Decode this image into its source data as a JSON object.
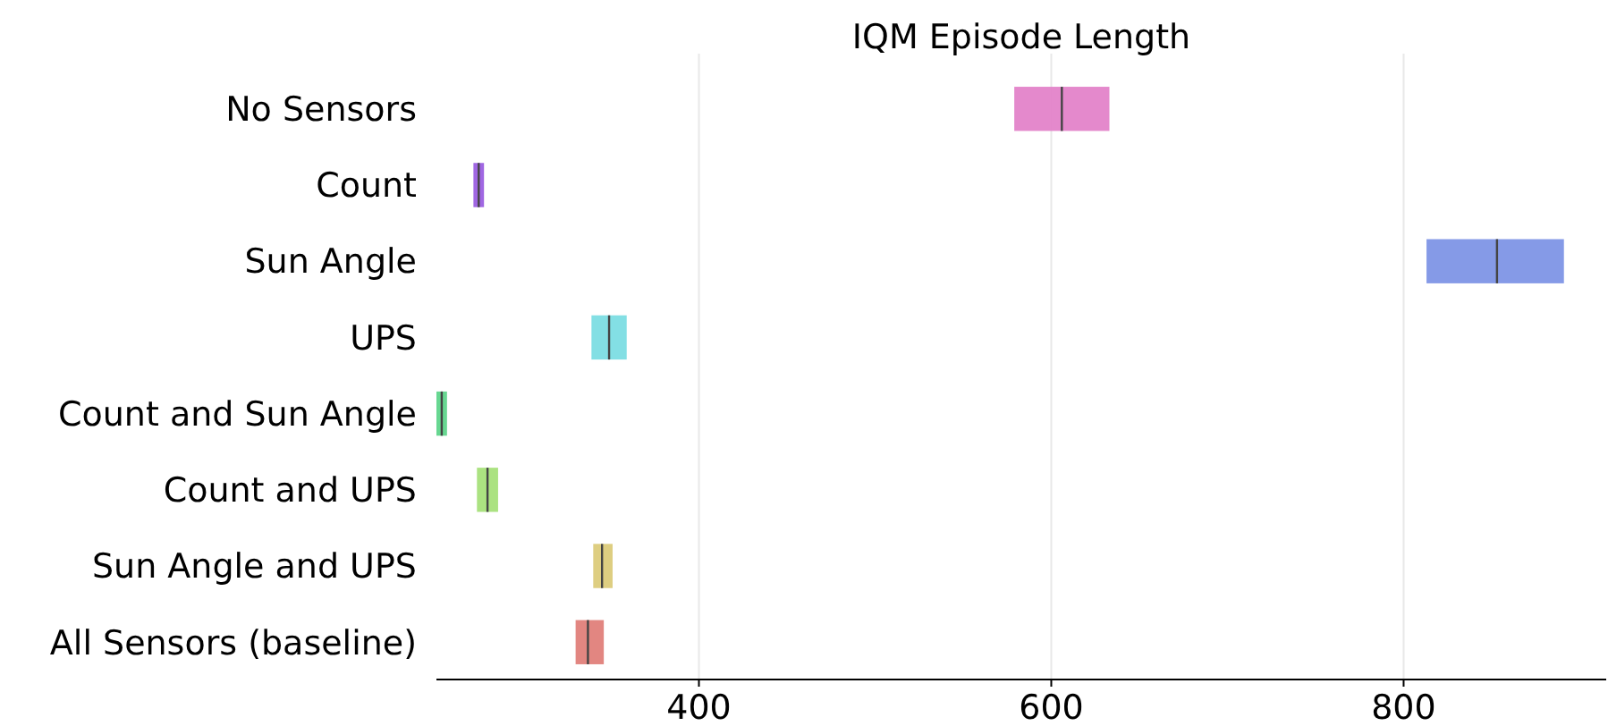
{
  "chart_data": {
    "type": "box",
    "title": "IQM Episode Length",
    "orientation": "horizontal",
    "categories": [
      "No Sensors",
      "Count",
      "Sun Angle",
      "UPS",
      "Count and Sun Angle",
      "Count and UPS",
      "Sun Angle and UPS",
      "All Sensors (baseline)"
    ],
    "boxes": [
      {
        "low": 579,
        "q1": 579,
        "median": 606,
        "q3": 633,
        "high": 633
      },
      {
        "low": 272,
        "q1": 272,
        "median": 275,
        "q3": 278,
        "high": 278
      },
      {
        "low": 813,
        "q1": 813,
        "median": 853,
        "q3": 891,
        "high": 891
      },
      {
        "low": 339,
        "q1": 339,
        "median": 349,
        "q3": 359,
        "high": 359
      },
      {
        "low": 251,
        "q1": 251,
        "median": 254,
        "q3": 257,
        "high": 257
      },
      {
        "low": 274,
        "q1": 274,
        "median": 280,
        "q3": 286,
        "high": 286
      },
      {
        "low": 340,
        "q1": 340,
        "median": 345,
        "q3": 351,
        "high": 351
      },
      {
        "low": 330,
        "q1": 330,
        "median": 337,
        "q3": 346,
        "high": 346
      }
    ],
    "colors": [
      "#e383c9",
      "#9b5fe0",
      "#7e95e6",
      "#7cdde3",
      "#5fd58b",
      "#a6e07a",
      "#dccb7a",
      "#e07f7a"
    ],
    "xlim": [
      251,
      915
    ],
    "xticks": [
      400,
      600,
      800
    ],
    "grid": "x"
  }
}
